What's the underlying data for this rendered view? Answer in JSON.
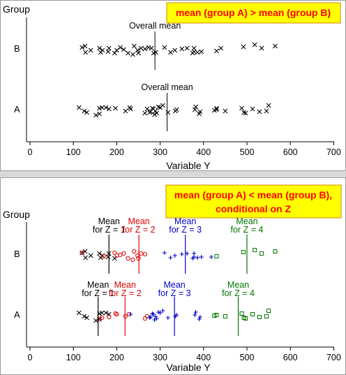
{
  "colors": {
    "background": "#ffffff",
    "separator": "#d9d9d9",
    "callout_fill": "#ffff00",
    "callout_text": "#ff0000",
    "z1": "#000000",
    "z2": "#dd0000",
    "z3": "#0000cc",
    "z4": "#007700"
  },
  "chart_data": [
    {
      "type": "scatter",
      "title": "",
      "xlabel": "Variable Y",
      "ylabel": "Group",
      "xlim": [
        0,
        700
      ],
      "xticks": [
        0,
        100,
        200,
        300,
        400,
        500,
        600,
        700
      ],
      "categories": [
        "A",
        "B"
      ],
      "grid": false,
      "callout": "mean (group A) > mean (group B)",
      "mean_label": "Overall mean",
      "means": {
        "A": 316,
        "B": 288
      },
      "marker": "x",
      "series": [
        {
          "group": "A",
          "points": [
            [
              113,
              -3
            ],
            [
              125,
              2
            ],
            [
              131,
              4
            ],
            [
              152,
              8
            ],
            [
              160,
              6
            ],
            [
              160,
              -2
            ],
            [
              166,
              -3
            ],
            [
              175,
              -3
            ],
            [
              182,
              -1
            ],
            [
              197,
              -2
            ],
            [
              220,
              2
            ],
            [
              230,
              -3
            ],
            [
              232,
              -1
            ],
            [
              265,
              5
            ],
            [
              270,
              -1
            ],
            [
              276,
              4
            ],
            [
              278,
              3
            ],
            [
              282,
              -2
            ],
            [
              284,
              -1
            ],
            [
              287,
              7
            ],
            [
              289,
              2
            ],
            [
              292,
              5
            ],
            [
              296,
              -4
            ],
            [
              300,
              -3
            ],
            [
              306,
              -6
            ],
            [
              318,
              4
            ],
            [
              335,
              2
            ],
            [
              338,
              0
            ],
            [
              380,
              0
            ],
            [
              382,
              -4
            ],
            [
              390,
              6
            ],
            [
              392,
              3
            ],
            [
              425,
              1
            ],
            [
              430,
              0
            ],
            [
              430,
              -2
            ],
            [
              450,
              2
            ],
            [
              488,
              -2
            ],
            [
              493,
              4
            ],
            [
              497,
              5
            ],
            [
              513,
              -1
            ],
            [
              529,
              3
            ],
            [
              545,
              2
            ],
            [
              550,
              -6
            ]
          ]
        },
        {
          "group": "B",
          "points": [
            [
              120,
              -2
            ],
            [
              127,
              -4
            ],
            [
              128,
              5
            ],
            [
              140,
              2
            ],
            [
              160,
              -1
            ],
            [
              163,
              5
            ],
            [
              167,
              2
            ],
            [
              180,
              4
            ],
            [
              182,
              -1
            ],
            [
              195,
              6
            ],
            [
              200,
              2
            ],
            [
              208,
              -2
            ],
            [
              216,
              1
            ],
            [
              226,
              6
            ],
            [
              237,
              8
            ],
            [
              240,
              -4
            ],
            [
              248,
              2
            ],
            [
              250,
              6
            ],
            [
              256,
              -1
            ],
            [
              265,
              0
            ],
            [
              273,
              -2
            ],
            [
              280,
              -1
            ],
            [
              285,
              6
            ],
            [
              290,
              5
            ],
            [
              310,
              -2
            ],
            [
              324,
              5
            ],
            [
              334,
              2
            ],
            [
              350,
              0
            ],
            [
              362,
              -1
            ],
            [
              375,
              6
            ],
            [
              378,
              -1
            ],
            [
              378,
              4
            ],
            [
              386,
              5
            ],
            [
              395,
              4
            ],
            [
              430,
              3
            ],
            [
              440,
              -1
            ],
            [
              492,
              -3
            ],
            [
              518,
              -6
            ],
            [
              534,
              -1
            ],
            [
              565,
              -4
            ]
          ]
        }
      ]
    },
    {
      "type": "scatter",
      "title": "",
      "xlabel": "Variable Y",
      "ylabel": "Group",
      "xlim": [
        0,
        700
      ],
      "xticks": [
        0,
        100,
        200,
        300,
        400,
        500,
        600,
        700
      ],
      "categories": [
        "A",
        "B"
      ],
      "grid": false,
      "callout": [
        "mean (group A) < mean (group B),",
        "conditional on Z"
      ],
      "mean_label_prefix": "Mean",
      "conditional_labels": [
        "for Z = 1",
        "for Z = 2",
        "for Z = 3",
        "for Z = 4"
      ],
      "means": {
        "A": {
          "Z1": 157,
          "Z2": 219,
          "Z3": 333,
          "Z4": 480
        },
        "B": {
          "Z1": 182,
          "Z2": 251,
          "Z3": 358,
          "Z4": 500
        }
      },
      "series": [
        {
          "group": "A",
          "z": 1,
          "marker": "x",
          "points": [
            [
              113,
              -3
            ],
            [
              125,
              2
            ],
            [
              131,
              4
            ],
            [
              152,
              8
            ],
            [
              160,
              6
            ],
            [
              160,
              -2
            ],
            [
              166,
              -3
            ],
            [
              175,
              -3
            ],
            [
              182,
              -1
            ]
          ]
        },
        {
          "group": "A",
          "z": 2,
          "marker": "o",
          "points": [
            [
              160,
              6
            ],
            [
              166,
              4
            ],
            [
              182,
              3
            ],
            [
              197,
              -2
            ],
            [
              200,
              -1
            ],
            [
              220,
              2
            ],
            [
              228,
              -1
            ],
            [
              265,
              5
            ],
            [
              270,
              2
            ]
          ]
        },
        {
          "group": "A",
          "z": 3,
          "marker": "+",
          "points": [
            [
              232,
              -1
            ],
            [
              276,
              4
            ],
            [
              278,
              3
            ],
            [
              282,
              -2
            ],
            [
              284,
              -1
            ],
            [
              287,
              7
            ],
            [
              289,
              2
            ],
            [
              292,
              5
            ],
            [
              296,
              -4
            ],
            [
              300,
              -3
            ],
            [
              306,
              -6
            ],
            [
              318,
              4
            ],
            [
              335,
              2
            ],
            [
              338,
              0
            ],
            [
              380,
              0
            ],
            [
              382,
              -4
            ],
            [
              390,
              6
            ],
            [
              392,
              3
            ]
          ]
        },
        {
          "group": "A",
          "z": 4,
          "marker": "s",
          "points": [
            [
              425,
              1
            ],
            [
              430,
              0
            ],
            [
              450,
              2
            ],
            [
              488,
              -2
            ],
            [
              493,
              4
            ],
            [
              497,
              5
            ],
            [
              513,
              -1
            ],
            [
              529,
              3
            ],
            [
              545,
              2
            ],
            [
              550,
              -6
            ]
          ]
        },
        {
          "group": "B",
          "z": 1,
          "marker": "x",
          "points": [
            [
              120,
              -2
            ],
            [
              127,
              -4
            ],
            [
              128,
              5
            ],
            [
              140,
              2
            ],
            [
              160,
              -1
            ],
            [
              163,
              5
            ],
            [
              167,
              2
            ],
            [
              180,
              4
            ],
            [
              182,
              -1
            ],
            [
              195,
              6
            ]
          ]
        },
        {
          "group": "B",
          "z": 2,
          "marker": "o",
          "points": [
            [
              120,
              -2
            ],
            [
              170,
              3
            ],
            [
              195,
              -2
            ],
            [
              200,
              2
            ],
            [
              208,
              1
            ],
            [
              216,
              -1
            ],
            [
              226,
              6
            ],
            [
              237,
              8
            ],
            [
              240,
              -4
            ],
            [
              248,
              2
            ],
            [
              250,
              6
            ],
            [
              256,
              -1
            ],
            [
              265,
              0
            ]
          ]
        },
        {
          "group": "B",
          "z": 3,
          "marker": "+",
          "points": [
            [
              310,
              -2
            ],
            [
              324,
              5
            ],
            [
              334,
              2
            ],
            [
              350,
              0
            ],
            [
              362,
              -1
            ],
            [
              375,
              6
            ],
            [
              378,
              -1
            ],
            [
              378,
              4
            ],
            [
              386,
              5
            ],
            [
              395,
              4
            ],
            [
              418,
              4
            ]
          ]
        },
        {
          "group": "B",
          "z": 4,
          "marker": "s",
          "points": [
            [
              430,
              3
            ],
            [
              492,
              -3
            ],
            [
              518,
              -6
            ],
            [
              534,
              -1
            ],
            [
              565,
              -4
            ]
          ]
        }
      ]
    }
  ]
}
